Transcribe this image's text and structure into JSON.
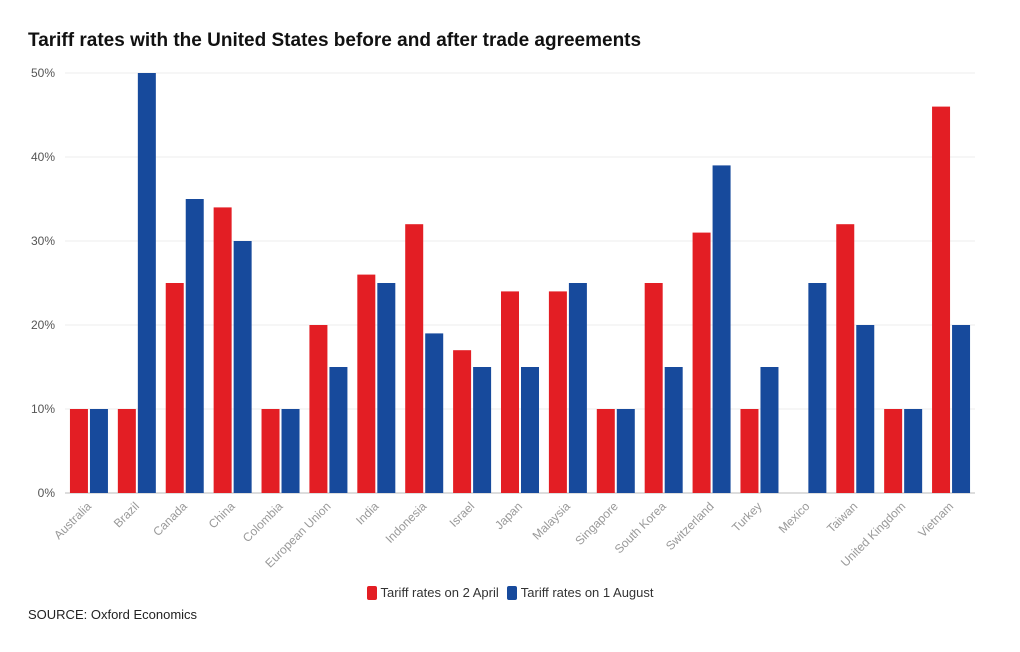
{
  "chart_data": {
    "type": "bar",
    "title": "Tariff rates with the United States before and after trade agreements",
    "categories": [
      "Australia",
      "Brazil",
      "Canada",
      "China",
      "Colombia",
      "European Union",
      "India",
      "Indonesia",
      "Israel",
      "Japan",
      "Malaysia",
      "Singapore",
      "South Korea",
      "Switzerland",
      "Turkey",
      "Mexico",
      "Taiwan",
      "United Kingdom",
      "Vietnam"
    ],
    "series": [
      {
        "name": "Tariff rates on 2 April",
        "color": "#e31e24",
        "values": [
          10,
          10,
          25,
          34,
          10,
          20,
          26,
          32,
          17,
          24,
          24,
          10,
          25,
          31,
          10,
          null,
          32,
          10,
          46
        ]
      },
      {
        "name": "Tariff rates on 1 August",
        "color": "#174a9c",
        "values": [
          10,
          50,
          35,
          30,
          10,
          15,
          25,
          19,
          15,
          15,
          25,
          10,
          15,
          39,
          15,
          25,
          20,
          10,
          20
        ]
      }
    ],
    "yticks": [
      "0%",
      "10%",
      "20%",
      "30%",
      "40%",
      "50%"
    ],
    "ylim": [
      0,
      50
    ],
    "xlabel": "",
    "ylabel": "",
    "grid": true,
    "legend_position": "bottom-center"
  },
  "source": "SOURCE: Oxford Economics"
}
